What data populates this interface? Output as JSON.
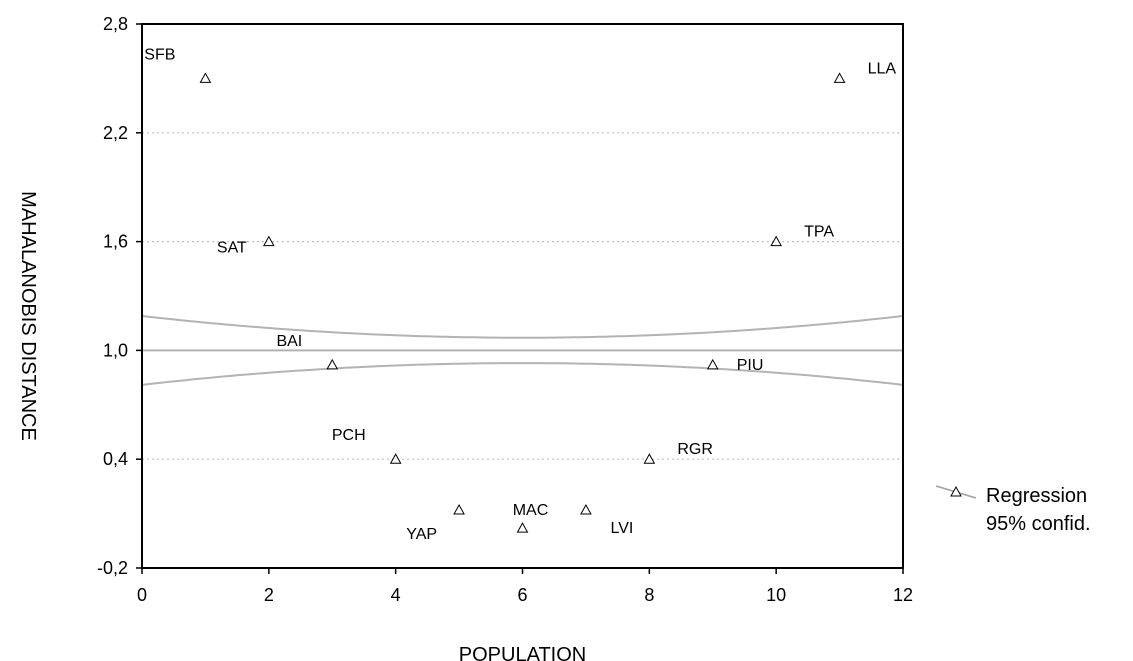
{
  "chart_data": {
    "type": "scatter",
    "xlabel": "POPULATION",
    "ylabel": "MAHALANOBIS DISTANCE",
    "xlim": [
      0,
      12
    ],
    "ylim": [
      -0.2,
      2.8
    ],
    "x_ticks": [
      0,
      2,
      4,
      6,
      8,
      10,
      12
    ],
    "x_tick_labels": [
      "0",
      "2",
      "4",
      "6",
      "8",
      "10",
      "12"
    ],
    "y_ticks": [
      -0.2,
      0.4,
      1.0,
      1.6,
      2.2,
      2.8
    ],
    "y_tick_labels": [
      "-0,2",
      "0,4",
      "1,0",
      "1,6",
      "2,2",
      "2,8"
    ],
    "grid": true,
    "legend": {
      "placement": "right",
      "entries": [
        "Regression",
        "95% confid."
      ]
    },
    "points": [
      {
        "label": "SFB",
        "x": 1,
        "y": 2.5,
        "label_pos": "upper-left"
      },
      {
        "label": "SAT",
        "x": 2,
        "y": 1.6,
        "label_pos": "left"
      },
      {
        "label": "BAI",
        "x": 3,
        "y": 0.92,
        "label_pos": "upper-left"
      },
      {
        "label": "PCH",
        "x": 4,
        "y": 0.4,
        "label_pos": "upper-left"
      },
      {
        "label": "YAP",
        "x": 5,
        "y": 0.12,
        "label_pos": "lower-left"
      },
      {
        "label": "MAC",
        "x": 6,
        "y": 0.02,
        "label_pos": "above"
      },
      {
        "label": "LVI",
        "x": 7,
        "y": 0.12,
        "label_pos": "lower-right"
      },
      {
        "label": "RGR",
        "x": 8,
        "y": 0.4,
        "label_pos": "upper-right"
      },
      {
        "label": "PIU",
        "x": 9,
        "y": 0.92,
        "label_pos": "right"
      },
      {
        "label": "TPA",
        "x": 10,
        "y": 1.6,
        "label_pos": "upper-right"
      },
      {
        "label": "LLA",
        "x": 11,
        "y": 2.5,
        "label_pos": "upper-right"
      }
    ],
    "regression": {
      "intercept": 1.0,
      "slope": 0.0
    },
    "confidence_band": {
      "center_x": 6.0,
      "half_width_at_center": 0.07,
      "half_width_at_edge": 0.19
    }
  }
}
